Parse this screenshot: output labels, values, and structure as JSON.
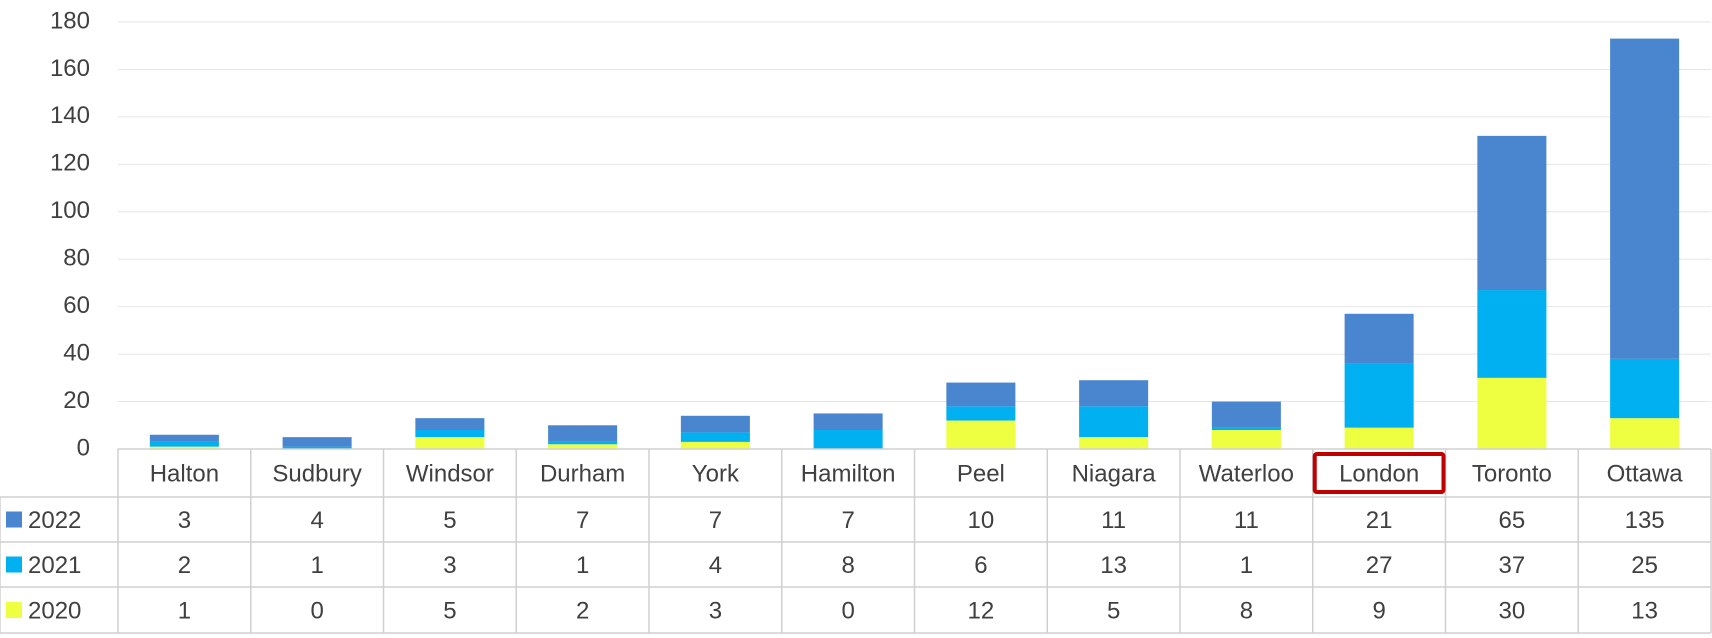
{
  "chart_data": {
    "type": "bar",
    "stacked": true,
    "categories": [
      "Halton",
      "Sudbury",
      "Windsor",
      "Durham",
      "York",
      "Hamilton",
      "Peel",
      "Niagara",
      "Waterloo",
      "London",
      "Toronto",
      "Ottawa"
    ],
    "series": [
      {
        "name": "2022",
        "color": "#4a86d0",
        "values": [
          3,
          4,
          5,
          7,
          7,
          7,
          10,
          11,
          11,
          21,
          65,
          135
        ]
      },
      {
        "name": "2021",
        "color": "#00b0f0",
        "values": [
          2,
          1,
          3,
          1,
          4,
          8,
          6,
          13,
          1,
          27,
          37,
          25
        ]
      },
      {
        "name": "2020",
        "color": "#eeff41",
        "values": [
          1,
          0,
          5,
          2,
          3,
          0,
          12,
          5,
          8,
          9,
          30,
          13
        ]
      }
    ],
    "ylim": [
      0,
      180
    ],
    "yticks": [
      0,
      20,
      40,
      60,
      80,
      100,
      120,
      140,
      160,
      180
    ],
    "grid": true,
    "data_table": true
  }
}
